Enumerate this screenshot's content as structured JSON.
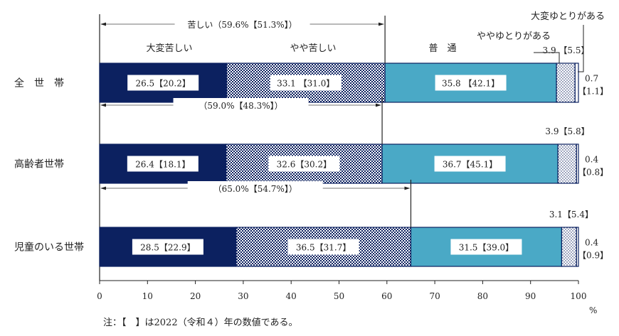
{
  "chart_data": {
    "type": "bar",
    "orientation": "horizontal",
    "stacked": true,
    "categories": [
      "全　世　帯",
      "高齢者世帯",
      "児童のいる世帯"
    ],
    "series": [
      {
        "name": "大変苦しい",
        "values": [
          26.5,
          26.4,
          28.5
        ],
        "prev": [
          20.2,
          18.1,
          22.9
        ],
        "labels": [
          "26.5【20.2】",
          "26.4【18.1】",
          "28.5【22.9】"
        ],
        "color": "#0c2160",
        "pattern": "solid"
      },
      {
        "name": "やや苦しい",
        "values": [
          33.1,
          32.6,
          36.5
        ],
        "prev": [
          31.0,
          30.2,
          31.7
        ],
        "labels": [
          "33.1 【31.0】",
          "32.6【30.2】",
          "36.5【31.7】"
        ],
        "color": "#0c2160",
        "pattern": "checker"
      },
      {
        "name": "普　通",
        "values": [
          35.8,
          36.7,
          31.5
        ],
        "prev": [
          42.1,
          45.1,
          39.0
        ],
        "labels": [
          "35.8 【42.1】",
          "36.7【45.1】",
          "31.5【39.0】"
        ],
        "color": "#4aa9c6",
        "pattern": "solid"
      },
      {
        "name": "ややゆとりがある",
        "values": [
          3.9,
          3.9,
          3.1
        ],
        "prev": [
          5.5,
          5.8,
          5.4
        ],
        "labels": [
          "3.9 【5.5】",
          "3.9【5.8】",
          "3.1【5.4】"
        ],
        "color": "#0c2160",
        "pattern": "dots"
      },
      {
        "name": "大変ゆとりがある",
        "values": [
          0.7,
          0.4,
          0.4
        ],
        "prev": [
          1.1,
          0.8,
          0.9
        ],
        "labels_top": [
          "0.7",
          "0.4",
          "0.4"
        ],
        "labels_bottom": [
          "【1.1】",
          "【0.8】",
          "【0.9】"
        ],
        "color": "#ffffff",
        "pattern": "outline"
      }
    ],
    "brackets": [
      "苦しい（59.6%【51.3%】）",
      "（59.0%【48.3%】）",
      "（65.0%【54.7%】）"
    ],
    "bracket_values": [
      59.6,
      59.0,
      65.0
    ],
    "xlim": [
      0,
      100
    ],
    "xticks": [
      "0",
      "10",
      "20",
      "30",
      "40",
      "50",
      "60",
      "70",
      "80",
      "90",
      "100"
    ],
    "xunit": "%",
    "grid": false,
    "note": "注：【　】は2022（令和４）年の数値である。"
  }
}
